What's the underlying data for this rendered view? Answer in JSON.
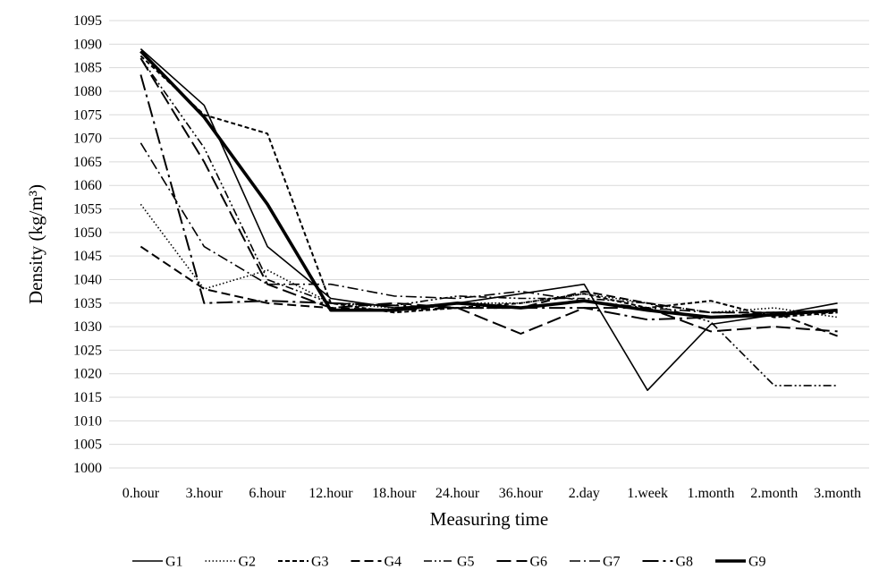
{
  "chart_data": {
    "type": "line",
    "title": "",
    "xlabel": "Measuring time",
    "ylabel": "Density (kg/m³)",
    "ylim": [
      1000,
      1095
    ],
    "ytick_step": 5,
    "grid": "horizontal",
    "legend_position": "bottom",
    "categories": [
      "0.hour",
      "3.hour",
      "6.hour",
      "12.hour",
      "18.hour",
      "24.hour",
      "36.hour",
      "2.day",
      "1.week",
      "1.month",
      "2.month",
      "3.month"
    ],
    "series": [
      {
        "name": "G1",
        "dash": "solid",
        "values": [
          1089,
          1077,
          1047,
          1036,
          1034,
          1035,
          1037,
          1039,
          1016.5,
          1030.5,
          1032.5,
          1035
        ]
      },
      {
        "name": "G2",
        "dash": "dotted",
        "values": [
          1056,
          1038,
          1042,
          1035,
          1034,
          1035,
          1035,
          1037,
          1035,
          1033,
          1034,
          1032
        ]
      },
      {
        "name": "G3",
        "dash": "short-dash",
        "values": [
          1087.5,
          1075,
          1071,
          1035,
          1033,
          1034,
          1035,
          1037,
          1034,
          1035.5,
          1032,
          1033
        ]
      },
      {
        "name": "G4",
        "dash": "dash",
        "values": [
          1047,
          1038,
          1035,
          1034,
          1033.5,
          1034,
          1034,
          1037.5,
          1035,
          1033,
          1033,
          1028
        ]
      },
      {
        "name": "G5",
        "dash": "dash-dot-dot",
        "values": [
          1087,
          1068,
          1040,
          1035,
          1034.5,
          1036.5,
          1036,
          1036,
          1035,
          1031,
          1017.5,
          1017.5
        ]
      },
      {
        "name": "G6",
        "dash": "long-dash",
        "values": [
          1087,
          1065,
          1039,
          1034,
          1035,
          1034,
          1028.5,
          1034,
          1034,
          1029,
          1030,
          1029
        ]
      },
      {
        "name": "G7",
        "dash": "dash-dot",
        "values": [
          1069,
          1047,
          1039,
          1039,
          1036.5,
          1036,
          1037.5,
          1035.5,
          1034,
          1033,
          1033,
          1033
        ]
      },
      {
        "name": "G8",
        "dash": "long-dash-dot",
        "values": [
          1083.5,
          1035,
          1035.5,
          1035,
          1034.5,
          1034,
          1034,
          1034,
          1031.5,
          1032,
          1033,
          1033.5
        ]
      },
      {
        "name": "G9",
        "dash": "thick-solid",
        "values": [
          1088.5,
          1074.5,
          1056,
          1033.5,
          1033.5,
          1035,
          1034,
          1035.5,
          1033.5,
          1032,
          1032.5,
          1033.5
        ]
      }
    ]
  }
}
